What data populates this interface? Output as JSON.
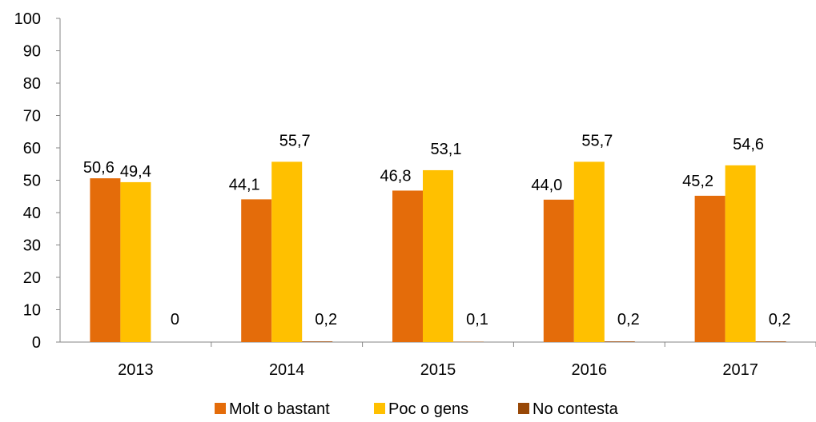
{
  "chart_data": {
    "type": "bar",
    "categories": [
      "2013",
      "2014",
      "2015",
      "2016",
      "2017"
    ],
    "series": [
      {
        "name": "Molt o bastant",
        "color": "#E46C0A",
        "values": [
          50.6,
          44.1,
          46.8,
          44.0,
          45.2
        ],
        "labels": [
          "50,6",
          "44,1",
          "46,8",
          "44,0",
          "45,2"
        ]
      },
      {
        "name": "Poc o gens",
        "color": "#FFC000",
        "values": [
          49.4,
          55.7,
          53.1,
          55.7,
          54.6
        ],
        "labels": [
          "49,4",
          "55,7",
          "53,1",
          "55,7",
          "54,6"
        ]
      },
      {
        "name": "No contesta",
        "color": "#984807",
        "values": [
          0,
          0.2,
          0.1,
          0.2,
          0.2
        ],
        "labels": [
          "0",
          "0,2",
          "0,1",
          "0,2",
          "0,2"
        ]
      }
    ],
    "yticks": [
      "0",
      "10",
      "20",
      "30",
      "40",
      "50",
      "60",
      "70",
      "80",
      "90",
      "100"
    ],
    "ylim": [
      0,
      100
    ],
    "grid": false,
    "legend_position": "bottom"
  }
}
